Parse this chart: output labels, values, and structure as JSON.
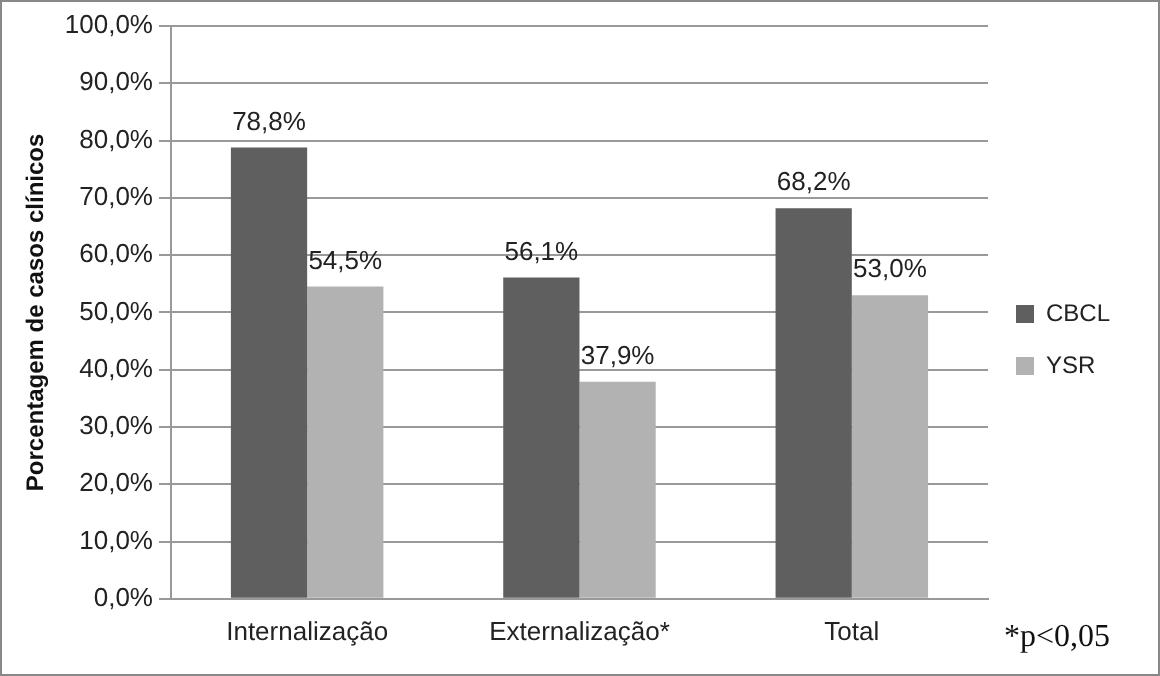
{
  "chart_data": {
    "type": "bar",
    "ylabel": "Porcentagem de casos clínicos",
    "categories": [
      "Internalização",
      "Externalização*",
      "Total"
    ],
    "series": [
      {
        "name": "CBCL",
        "color": "#5f5f5f",
        "values": [
          78.8,
          56.1,
          68.2
        ],
        "value_labels": [
          "78,8%",
          "56,1%",
          "68,2%"
        ]
      },
      {
        "name": "YSR",
        "color": "#b2b2b2",
        "values": [
          54.5,
          37.9,
          53.0
        ],
        "value_labels": [
          "54,5%",
          "37,9%",
          "53,0%"
        ]
      }
    ],
    "ylim": [
      0,
      100
    ],
    "yticks": [
      {
        "value": 0,
        "label": "0,0%"
      },
      {
        "value": 10,
        "label": "10,0%"
      },
      {
        "value": 20,
        "label": "20,0%"
      },
      {
        "value": 30,
        "label": "30,0%"
      },
      {
        "value": 40,
        "label": "40,0%"
      },
      {
        "value": 50,
        "label": "50,0%"
      },
      {
        "value": 60,
        "label": "60,0%"
      },
      {
        "value": 70,
        "label": "70,0%"
      },
      {
        "value": 80,
        "label": "80,0%"
      },
      {
        "value": 90,
        "label": "90,0%"
      },
      {
        "value": 100,
        "label": "100,0%"
      }
    ],
    "grid": "y",
    "legend": "right",
    "annotations": [
      "*p<0,05"
    ]
  }
}
